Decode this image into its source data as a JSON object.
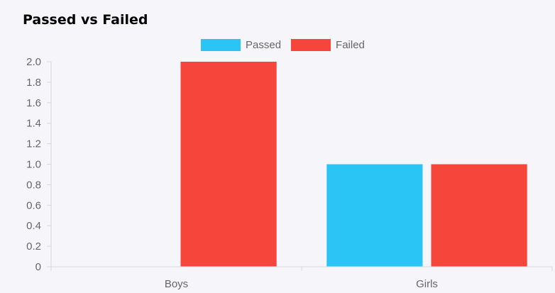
{
  "chart_data": {
    "type": "bar",
    "title": "Passed vs Failed",
    "categories": [
      "Boys",
      "Girls"
    ],
    "series": [
      {
        "name": "Passed",
        "values": [
          0,
          1
        ],
        "color": "#2ac5f5"
      },
      {
        "name": "Failed",
        "values": [
          2,
          1
        ],
        "color": "#f6453a"
      }
    ],
    "yticks": [
      "0",
      "0.2",
      "0.4",
      "0.6",
      "0.8",
      "1.0",
      "1.2",
      "1.4",
      "1.6",
      "1.8",
      "2.0"
    ],
    "ylim": [
      0,
      2
    ],
    "xlabel": "",
    "ylabel": "",
    "legend": "top-center",
    "grid": false
  }
}
